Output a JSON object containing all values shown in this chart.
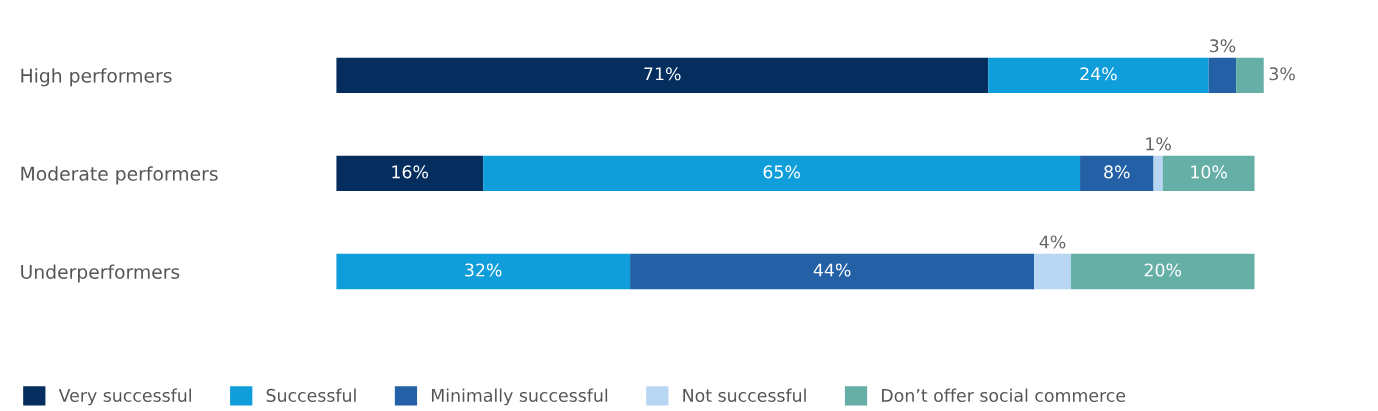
{
  "chart_data": {
    "type": "bar",
    "orientation": "horizontal",
    "stacked": true,
    "legend": "bottom",
    "tick_labels": "y",
    "categories": [
      "High performers",
      "Moderate performers",
      "Underperformers"
    ],
    "series": [
      {
        "name": "Very successful",
        "color": "#052e5e",
        "values": [
          71,
          16,
          0
        ],
        "value_labels": [
          "71%",
          "16%",
          null
        ]
      },
      {
        "name": "Successful",
        "color": "#0f9ed9",
        "values": [
          24,
          65,
          32
        ],
        "value_labels": [
          "24%",
          "65%",
          "32%"
        ]
      },
      {
        "name": "Minimally successful",
        "color": "#2360a5",
        "values": [
          3,
          8,
          44
        ],
        "value_labels": [
          "3%",
          "8%",
          "44%"
        ]
      },
      {
        "name": "Not successful",
        "color": "#b8d5f1",
        "values": [
          0,
          1,
          4
        ],
        "value_labels": [
          null,
          "1%",
          "4%"
        ]
      },
      {
        "name": "Don’t offer social commerce",
        "color": "#66afa7",
        "values": [
          3,
          10,
          20
        ],
        "value_labels": [
          "3%",
          "10%",
          "20%"
        ]
      }
    ]
  }
}
